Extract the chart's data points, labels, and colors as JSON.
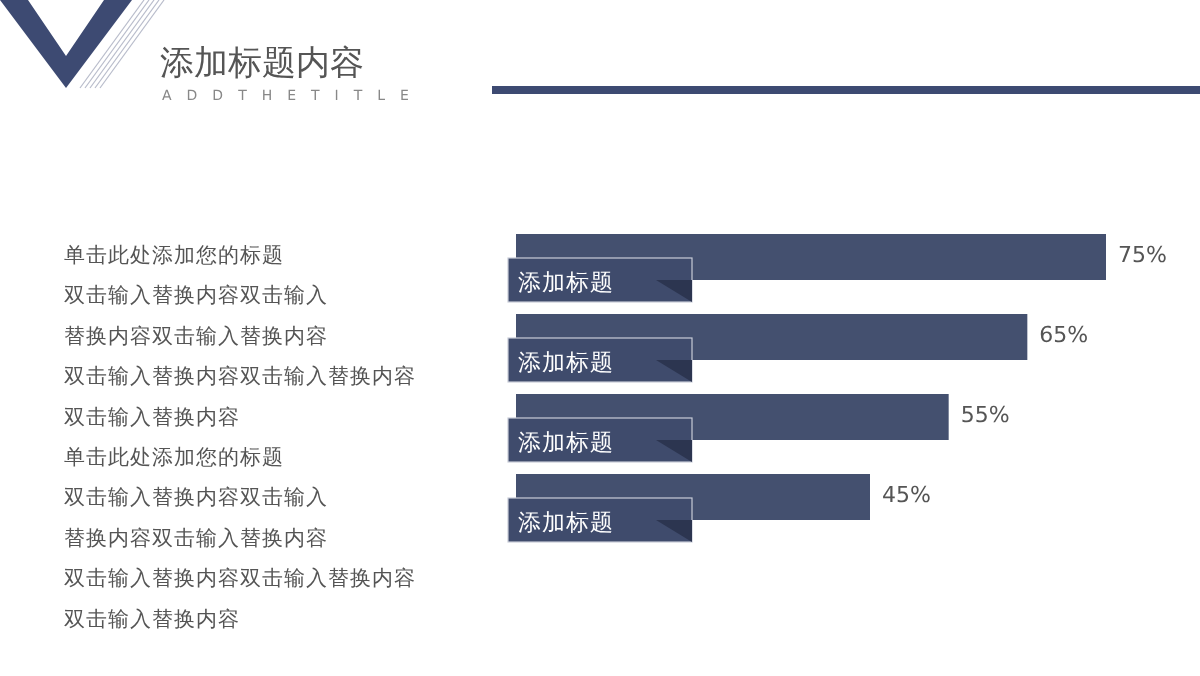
{
  "chart_data": {
    "type": "bar",
    "orientation": "horizontal",
    "title": "添加标题内容",
    "subtitle": "ADDTHETITLE",
    "categories": [
      "添加标题",
      "添加标题",
      "添加标题",
      "添加标题"
    ],
    "values": [
      75,
      65,
      55,
      45
    ],
    "value_labels": [
      "75%",
      "65%",
      "55%",
      "45%"
    ],
    "color": "#44506f",
    "annotations": [
      "单击此处添加您的标题",
      "双击输入替换内容双击输入",
      "替换内容双击输入替换内容",
      "双击输入替换内容双击输入替换内容",
      "双击输入替换内容",
      "单击此处添加您的标题",
      "双击输入替换内容双击输入",
      "替换内容双击输入替换内容",
      "双击输入替换内容双击输入替换内容",
      "双击输入替换内容"
    ]
  }
}
